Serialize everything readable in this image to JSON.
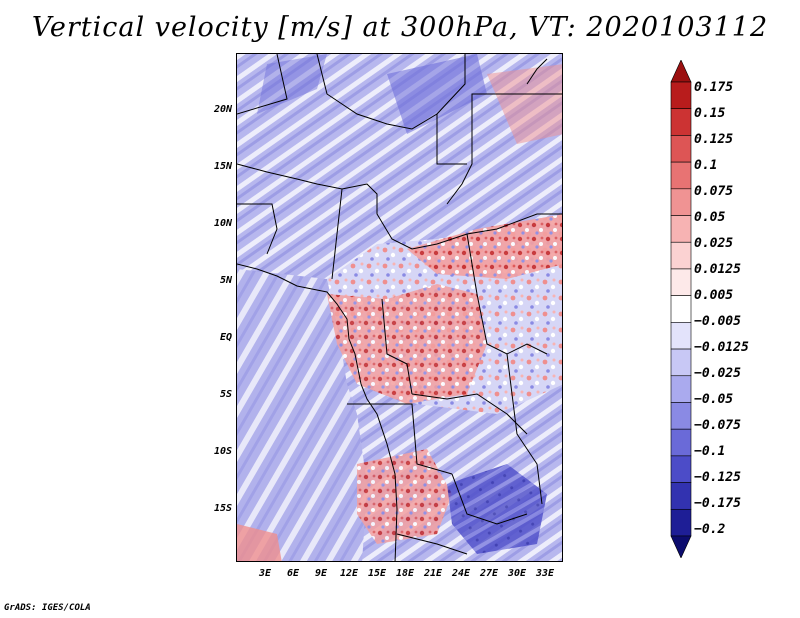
{
  "title": "Vertical velocity [m/s] at 300hPa, VT: 2020103112",
  "credit": "GrADS: IGES/COLA",
  "y_axis_labels": [
    "20N",
    "15N",
    "10N",
    "5N",
    "EQ",
    "5S",
    "10S",
    "15S"
  ],
  "x_axis_labels": [
    "3E",
    "6E",
    "9E",
    "12E",
    "15E",
    "18E",
    "21E",
    "24E",
    "27E",
    "30E",
    "33E"
  ],
  "colorbar": {
    "labels": [
      "0.175",
      "0.15",
      "0.125",
      "0.1",
      "0.075",
      "0.05",
      "0.025",
      "0.0125",
      "0.005",
      "−0.005",
      "−0.0125",
      "−0.025",
      "−0.05",
      "−0.075",
      "−0.1",
      "−0.125",
      "−0.175",
      "−0.2"
    ],
    "colors": [
      "#9b1010",
      "#b81c1c",
      "#cc3333",
      "#dd5555",
      "#e87373",
      "#f09393",
      "#f7b3b3",
      "#fbd2d2",
      "#fde9e9",
      "#ffffff",
      "#e3e3fb",
      "#c8c8f5",
      "#aaaaee",
      "#8a8ae4",
      "#6a6ad8",
      "#4c4cc8",
      "#3232b0",
      "#1e1e96",
      "#0c0c6e"
    ]
  }
}
